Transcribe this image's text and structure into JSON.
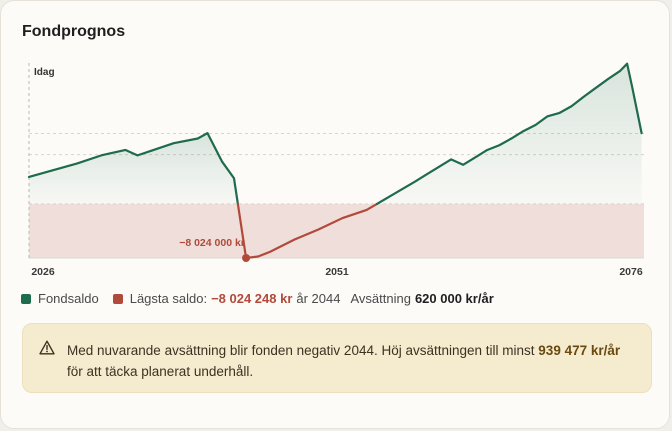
{
  "card": {
    "title": "Fondprognos"
  },
  "chart_data": {
    "type": "line",
    "x_ticks": [
      "2026",
      "2051",
      "2076"
    ],
    "today_label": "Idag",
    "xlim": [
      2026,
      2077
    ],
    "ylim": [
      -8024248,
      20900000
    ],
    "min_annotation": "−8 024 000 kr",
    "series": [
      {
        "name": "Fondsaldo",
        "color": "#1f6b4f",
        "x": [
          2026,
          2028,
          2030,
          2032,
          2034,
          2035,
          2036,
          2038,
          2040,
          2040.8,
          2042,
          2043,
          2044,
          2045,
          2046,
          2048,
          2050,
          2052,
          2054,
          2056,
          2058,
          2059,
          2060,
          2061,
          2062,
          2063,
          2064,
          2065,
          2066,
          2067,
          2068,
          2069,
          2070,
          2071,
          2072,
          2073,
          2074,
          2075,
          2075.6,
          2076,
          2076.8
        ],
        "y": [
          4000000,
          5000000,
          6000000,
          7200000,
          8000000,
          7200000,
          7800000,
          9000000,
          9700000,
          10500000,
          6300000,
          3800000,
          -8024248,
          -7800000,
          -7100000,
          -5300000,
          -3800000,
          -2100000,
          -900000,
          1200000,
          3300000,
          4400000,
          5500000,
          6600000,
          5800000,
          6900000,
          8000000,
          8700000,
          9700000,
          10800000,
          11700000,
          13000000,
          13500000,
          14500000,
          15900000,
          17200000,
          18500000,
          19700000,
          20800000,
          17500000,
          10500000
        ]
      }
    ],
    "negative_color": "#b14a3b"
  },
  "legend": {
    "fund_label": "Fondsaldo",
    "lowest_label": "Lägsta saldo:",
    "lowest_value": "−8 024 248 kr",
    "lowest_year": "år 2044",
    "contribution_label": "Avsättning",
    "contribution_value": "620 000 kr/år",
    "fund_color": "#1f6b4f",
    "lowest_color": "#b14a3b"
  },
  "warning": {
    "icon": "warning-triangle-icon",
    "text_before": "Med nuvarande avsättning blir fonden negativ 2044. Höj avsättningen till minst ",
    "text_strong": "939 477 kr/år",
    "text_after": " för att täcka planerat underhåll."
  }
}
